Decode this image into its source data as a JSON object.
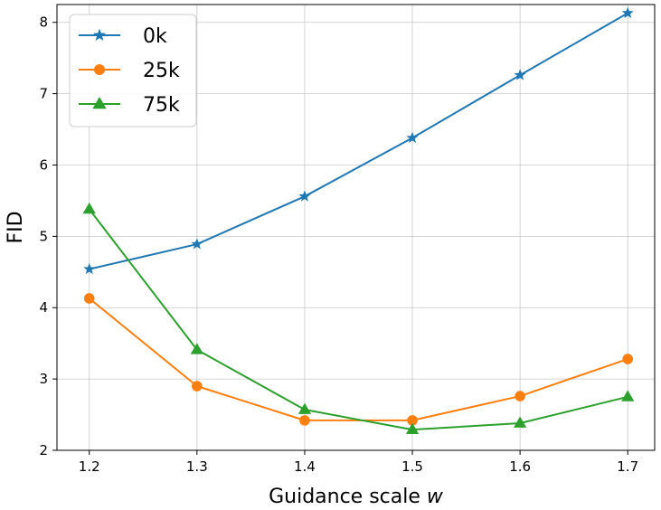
{
  "chart_data": {
    "type": "line",
    "xlabel": "Guidance scale",
    "xlabel_var": "w",
    "ylabel": "FID",
    "x": [
      1.2,
      1.3,
      1.4,
      1.5,
      1.6,
      1.7
    ],
    "xlim": [
      1.17,
      1.725
    ],
    "ylim": [
      2.0,
      8.25
    ],
    "xticks": [
      "1.2",
      "1.3",
      "1.4",
      "1.5",
      "1.6",
      "1.7"
    ],
    "yticks": [
      "2",
      "3",
      "4",
      "5",
      "6",
      "7",
      "8"
    ],
    "grid": true,
    "legend_position": "upper-left",
    "series": [
      {
        "name": "0k",
        "color": "#1f77b4",
        "marker": "star",
        "values": [
          4.54,
          4.89,
          5.56,
          6.38,
          7.26,
          8.13
        ]
      },
      {
        "name": "25k",
        "color": "#ff7f0e",
        "marker": "circle",
        "values": [
          4.13,
          2.9,
          2.42,
          2.42,
          2.76,
          3.28
        ]
      },
      {
        "name": "75k",
        "color": "#2ca02c",
        "marker": "triangle",
        "values": [
          5.38,
          3.41,
          2.57,
          2.29,
          2.38,
          2.75
        ]
      }
    ]
  }
}
